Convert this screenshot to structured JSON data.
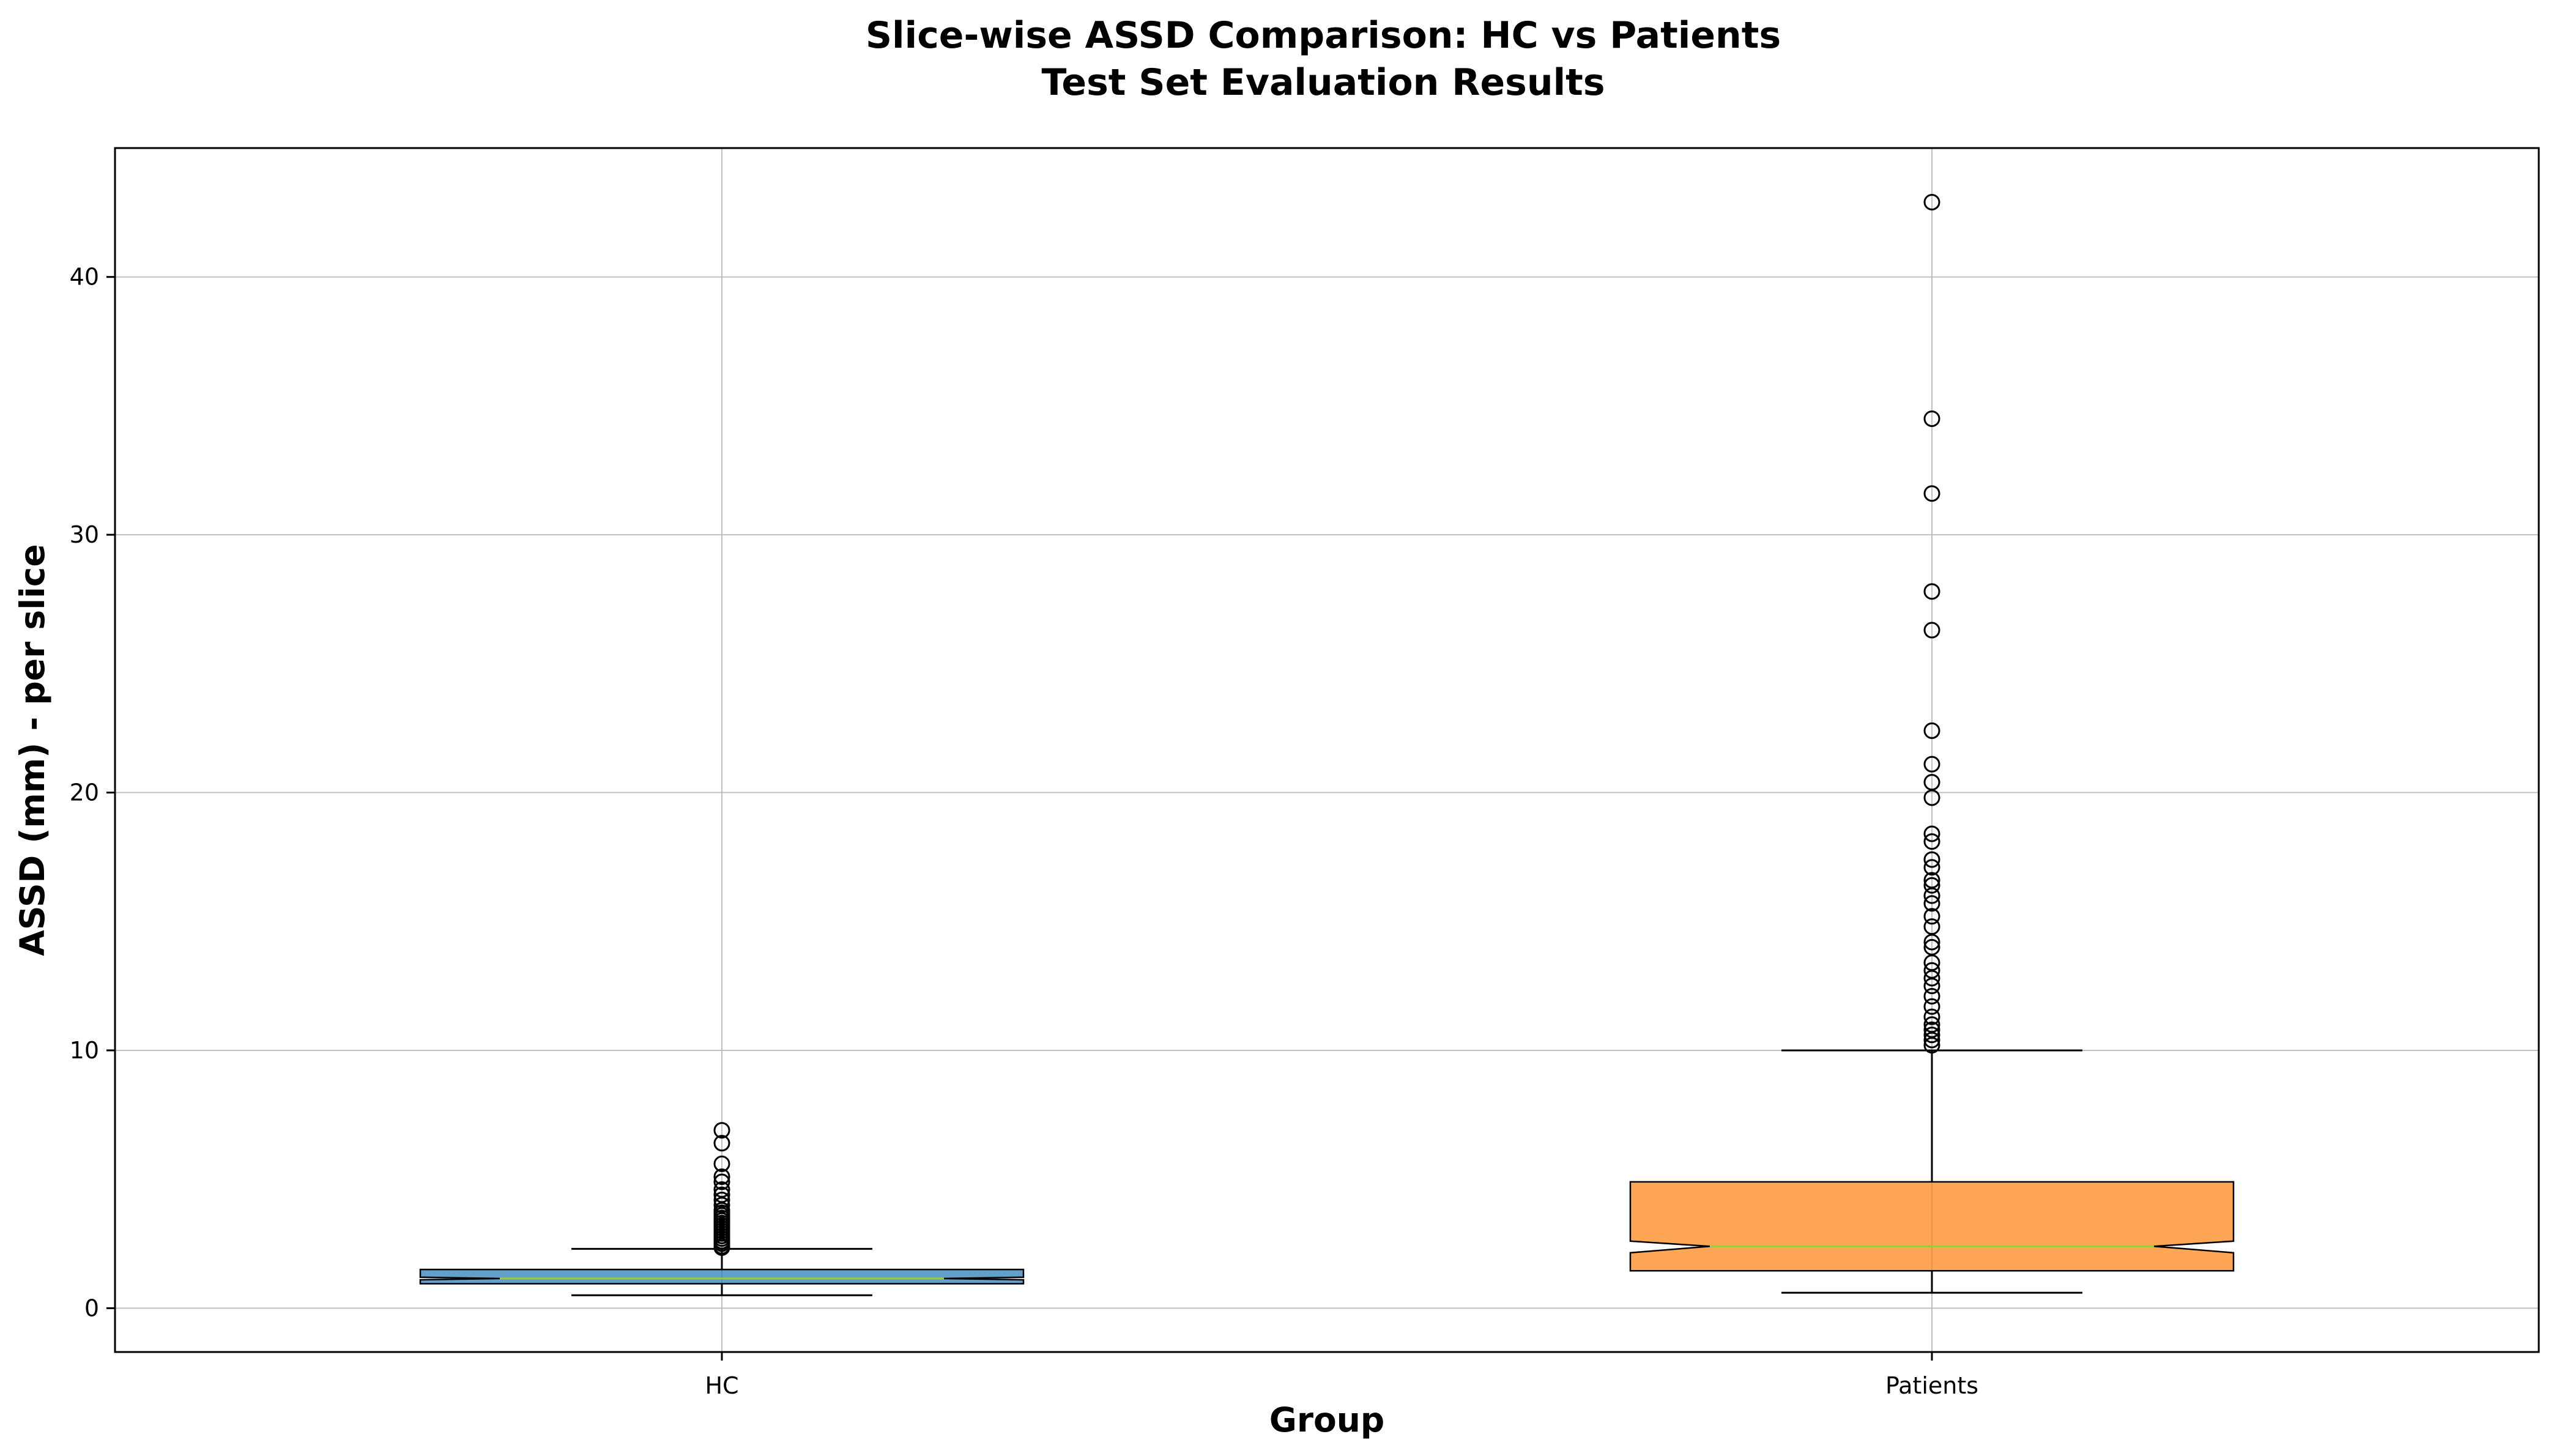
{
  "chart_data": {
    "type": "boxplot",
    "title": "Slice-wise ASSD Comparison: HC vs Patients",
    "subtitle": "Test Set Evaluation Results",
    "xlabel": "Group",
    "ylabel": "ASSD (mm) - per slice",
    "ylim": [
      -1.7,
      45
    ],
    "yticks": [
      0,
      10,
      20,
      30,
      40
    ],
    "grid": true,
    "notched": true,
    "categories": [
      "HC",
      "Patients"
    ],
    "boxes": [
      {
        "category": "HC",
        "color": "#1f77b4",
        "whisker_low": 0.5,
        "q1": 0.95,
        "median": 1.15,
        "q3": 1.5,
        "whisker_high": 2.3,
        "notch_low": 1.1,
        "notch_high": 1.2,
        "outliers": [
          2.35,
          2.4,
          2.5,
          2.6,
          2.7,
          2.8,
          2.9,
          3.0,
          3.1,
          3.2,
          3.3,
          3.4,
          3.5,
          3.6,
          3.7,
          3.8,
          4.0,
          4.2,
          4.4,
          4.6,
          4.9,
          5.1,
          5.6,
          6.4,
          6.9
        ]
      },
      {
        "category": "Patients",
        "color": "#ff7f0e",
        "whisker_low": 0.6,
        "q1": 1.45,
        "median": 2.4,
        "q3": 4.9,
        "whisker_high": 10.0,
        "notch_low": 2.15,
        "notch_high": 2.6,
        "outliers": [
          10.2,
          10.4,
          10.6,
          10.8,
          11.0,
          11.3,
          11.7,
          12.1,
          12.5,
          12.8,
          13.1,
          13.4,
          14.0,
          14.2,
          14.8,
          15.2,
          15.7,
          16.0,
          16.4,
          16.6,
          17.1,
          17.4,
          18.1,
          18.4,
          19.8,
          20.4,
          21.1,
          22.4,
          26.3,
          27.8,
          31.6,
          34.5,
          42.9
        ]
      }
    ]
  }
}
